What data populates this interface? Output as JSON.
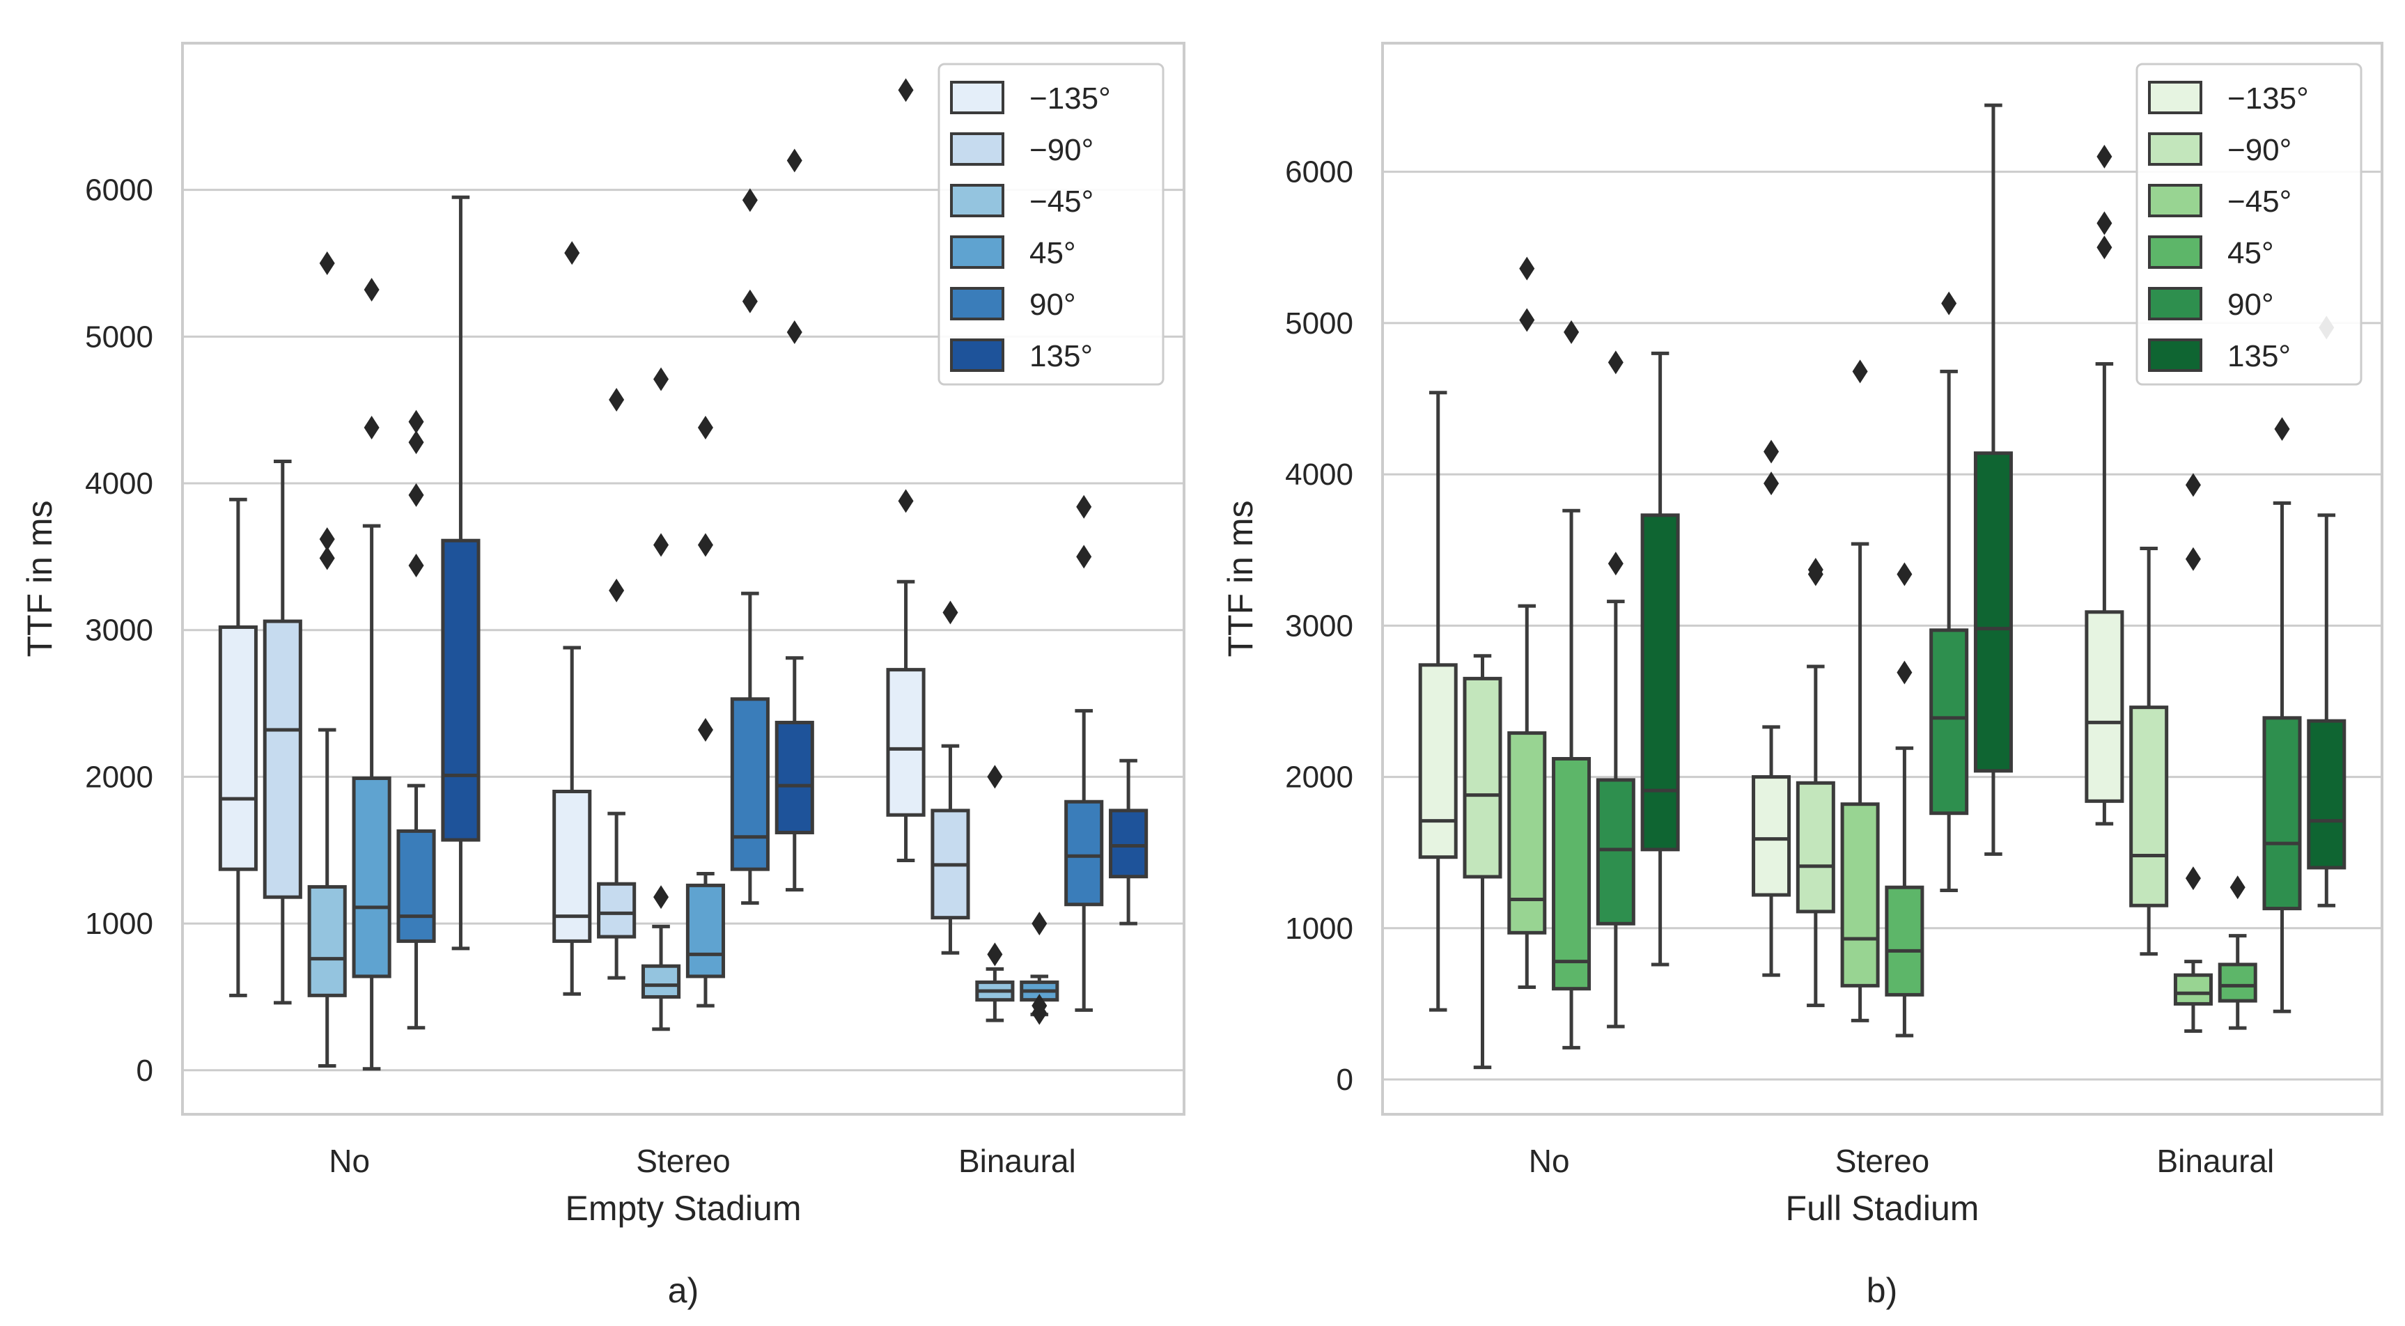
{
  "chart_data": [
    {
      "type": "box",
      "panel_label": "a)",
      "xlabel": "Empty Stadium",
      "ylabel": "TTF in ms",
      "ylim": [
        -300,
        7000
      ],
      "yticks": [
        "0",
        "1000",
        "2000",
        "3000",
        "4000",
        "5000",
        "6000"
      ],
      "ytick_values": [
        0,
        1000,
        2000,
        3000,
        4000,
        5000,
        6000
      ],
      "categories": [
        "No",
        "Stereo",
        "Binaural"
      ],
      "legend": {
        "placement": "top-right",
        "entries": [
          "−135°",
          "−90°",
          "−45°",
          "45°",
          "90°",
          "135°"
        ],
        "colors": [
          "#e4eef9",
          "#c6dbef",
          "#94c4df",
          "#5fa3d0",
          "#3a7dba",
          "#1e539a"
        ]
      },
      "grid": true,
      "groups": [
        {
          "category": "No",
          "boxes": [
            {
              "series": "−135°",
              "whisker_low": 510,
              "q1": 1370,
              "median": 1850,
              "q3": 3020,
              "whisker_high": 3890,
              "outliers": []
            },
            {
              "series": "−90°",
              "whisker_low": 460,
              "q1": 1180,
              "median": 2320,
              "q3": 3060,
              "whisker_high": 4150,
              "outliers": []
            },
            {
              "series": "−45°",
              "whisker_low": 30,
              "q1": 510,
              "median": 760,
              "q3": 1250,
              "whisker_high": 2320,
              "outliers": [
                3490,
                3620,
                5500
              ]
            },
            {
              "series": "45°",
              "whisker_low": 10,
              "q1": 640,
              "median": 1110,
              "q3": 1990,
              "whisker_high": 3710,
              "outliers": [
                4380,
                5320
              ]
            },
            {
              "series": "90°",
              "whisker_low": 290,
              "q1": 880,
              "median": 1050,
              "q3": 1630,
              "whisker_high": 1940,
              "outliers": [
                3440,
                3920,
                4280,
                4420
              ]
            },
            {
              "series": "135°",
              "whisker_low": 830,
              "q1": 1570,
              "median": 2010,
              "q3": 3610,
              "whisker_high": 5950,
              "outliers": []
            }
          ]
        },
        {
          "category": "Stereo",
          "boxes": [
            {
              "series": "−135°",
              "whisker_low": 520,
              "q1": 880,
              "median": 1050,
              "q3": 1900,
              "whisker_high": 2880,
              "outliers": [
                5570
              ]
            },
            {
              "series": "−90°",
              "whisker_low": 630,
              "q1": 910,
              "median": 1070,
              "q3": 1270,
              "whisker_high": 1750,
              "outliers": [
                3270,
                4570
              ]
            },
            {
              "series": "−45°",
              "whisker_low": 280,
              "q1": 500,
              "median": 580,
              "q3": 710,
              "whisker_high": 980,
              "outliers": [
                1180,
                3580,
                4710
              ]
            },
            {
              "series": "45°",
              "whisker_low": 440,
              "q1": 640,
              "median": 790,
              "q3": 1260,
              "whisker_high": 1340,
              "outliers": [
                2320,
                3580,
                4380
              ]
            },
            {
              "series": "90°",
              "whisker_low": 1140,
              "q1": 1370,
              "median": 1590,
              "q3": 2530,
              "whisker_high": 3250,
              "outliers": [
                5240,
                5930
              ]
            },
            {
              "series": "135°",
              "whisker_low": 1230,
              "q1": 1620,
              "median": 1940,
              "q3": 2370,
              "whisker_high": 2810,
              "outliers": [
                5030,
                6200
              ]
            }
          ]
        },
        {
          "category": "Binaural",
          "boxes": [
            {
              "series": "−135°",
              "whisker_low": 1430,
              "q1": 1740,
              "median": 2190,
              "q3": 2730,
              "whisker_high": 3330,
              "outliers": [
                3880,
                6680
              ]
            },
            {
              "series": "−90°",
              "whisker_low": 800,
              "q1": 1040,
              "median": 1400,
              "q3": 1770,
              "whisker_high": 2210,
              "outliers": [
                3120
              ]
            },
            {
              "series": "−45°",
              "whisker_low": 340,
              "q1": 480,
              "median": 540,
              "q3": 600,
              "whisker_high": 690,
              "outliers": [
                790,
                2000
              ]
            },
            {
              "series": "45°",
              "whisker_low": 380,
              "q1": 480,
              "median": 540,
              "q3": 600,
              "whisker_high": 640,
              "outliers": [
                390,
                440,
                1000
              ]
            },
            {
              "series": "90°",
              "whisker_low": 410,
              "q1": 1130,
              "median": 1460,
              "q3": 1830,
              "whisker_high": 2450,
              "outliers": [
                3500,
                3840
              ]
            },
            {
              "series": "135°",
              "whisker_low": 1000,
              "q1": 1320,
              "median": 1530,
              "q3": 1770,
              "whisker_high": 2110,
              "outliers": []
            }
          ]
        }
      ]
    },
    {
      "type": "box",
      "panel_label": "b)",
      "xlabel": "Full Stadium",
      "ylabel": "TTF in ms",
      "ylim": [
        -230,
        6850
      ],
      "yticks": [
        "0",
        "1000",
        "2000",
        "3000",
        "4000",
        "5000",
        "6000"
      ],
      "ytick_values": [
        0,
        1000,
        2000,
        3000,
        4000,
        5000,
        6000
      ],
      "categories": [
        "No",
        "Stereo",
        "Binaural"
      ],
      "legend": {
        "placement": "top-right",
        "entries": [
          "−135°",
          "−90°",
          "−45°",
          "45°",
          "90°",
          "135°"
        ],
        "colors": [
          "#e6f4e1",
          "#c3e6bc",
          "#98d492",
          "#5db669",
          "#2e8f4e",
          "#0f6532"
        ]
      },
      "grid": true,
      "groups": [
        {
          "category": "No",
          "boxes": [
            {
              "series": "−135°",
              "whisker_low": 460,
              "q1": 1470,
              "median": 1710,
              "q3": 2740,
              "whisker_high": 4540,
              "outliers": []
            },
            {
              "series": "−90°",
              "whisker_low": 80,
              "q1": 1340,
              "median": 1880,
              "q3": 2650,
              "whisker_high": 2800,
              "outliers": []
            },
            {
              "series": "−45°",
              "whisker_low": 610,
              "q1": 970,
              "median": 1190,
              "q3": 2290,
              "whisker_high": 3130,
              "outliers": [
                5020,
                5360
              ]
            },
            {
              "series": "45°",
              "whisker_low": 210,
              "q1": 600,
              "median": 780,
              "q3": 2120,
              "whisker_high": 3760,
              "outliers": [
                4940
              ]
            },
            {
              "series": "90°",
              "whisker_low": 350,
              "q1": 1030,
              "median": 1520,
              "q3": 1980,
              "whisker_high": 3160,
              "outliers": [
                3410,
                4740
              ]
            },
            {
              "series": "135°",
              "whisker_low": 760,
              "q1": 1520,
              "median": 1910,
              "q3": 3730,
              "whisker_high": 4800,
              "outliers": []
            }
          ]
        },
        {
          "category": "Stereo",
          "boxes": [
            {
              "series": "−135°",
              "whisker_low": 690,
              "q1": 1220,
              "median": 1590,
              "q3": 2000,
              "whisker_high": 2330,
              "outliers": [
                3940,
                4150
              ]
            },
            {
              "series": "−90°",
              "whisker_low": 490,
              "q1": 1110,
              "median": 1410,
              "q3": 1960,
              "whisker_high": 2730,
              "outliers": [
                3340,
                3370
              ]
            },
            {
              "series": "−45°",
              "whisker_low": 390,
              "q1": 620,
              "median": 930,
              "q3": 1820,
              "whisker_high": 3540,
              "outliers": [
                4680
              ]
            },
            {
              "series": "45°",
              "whisker_low": 290,
              "q1": 560,
              "median": 850,
              "q3": 1270,
              "whisker_high": 2190,
              "outliers": [
                2690,
                3340
              ]
            },
            {
              "series": "90°",
              "whisker_low": 1250,
              "q1": 1760,
              "median": 2390,
              "q3": 2970,
              "whisker_high": 4680,
              "outliers": [
                5130
              ]
            },
            {
              "series": "135°",
              "whisker_low": 1490,
              "q1": 2040,
              "median": 2980,
              "q3": 4140,
              "whisker_high": 6440,
              "outliers": []
            }
          ]
        },
        {
          "category": "Binaural",
          "boxes": [
            {
              "series": "−135°",
              "whisker_low": 1690,
              "q1": 1840,
              "median": 2360,
              "q3": 3090,
              "whisker_high": 4730,
              "outliers": [
                5500,
                5660,
                6100
              ]
            },
            {
              "series": "−90°",
              "whisker_low": 830,
              "q1": 1150,
              "median": 1480,
              "q3": 2460,
              "whisker_high": 3510,
              "outliers": []
            },
            {
              "series": "−45°",
              "whisker_low": 320,
              "q1": 500,
              "median": 570,
              "q3": 690,
              "whisker_high": 780,
              "outliers": [
                1330,
                3440,
                3930
              ]
            },
            {
              "series": "45°",
              "whisker_low": 340,
              "q1": 520,
              "median": 620,
              "q3": 760,
              "whisker_high": 950,
              "outliers": [
                1270
              ]
            },
            {
              "series": "90°",
              "whisker_low": 450,
              "q1": 1130,
              "median": 1560,
              "q3": 2390,
              "whisker_high": 3810,
              "outliers": [
                4300
              ]
            },
            {
              "series": "135°",
              "whisker_low": 1150,
              "q1": 1400,
              "median": 1710,
              "q3": 2370,
              "whisker_high": 3730,
              "outliers": [
                4970
              ]
            }
          ]
        }
      ]
    }
  ]
}
